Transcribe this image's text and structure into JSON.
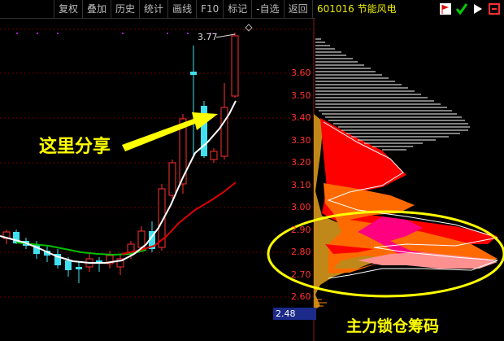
{
  "toolbar": {
    "items": [
      "复权",
      "叠加",
      "历史",
      "统计",
      "画线",
      "F10",
      "标记",
      "-自选",
      "返回"
    ]
  },
  "stock": {
    "title": "601016 节能风电",
    "header_icons": [
      "flag-icon",
      "check-icon",
      "arrow-icon",
      "expand-icon"
    ]
  },
  "axis": {
    "labels": [
      "3.60",
      "3.50",
      "3.40",
      "3.30",
      "3.20",
      "3.10",
      "3.00",
      "2.90",
      "2.80",
      "2.70",
      "2.60"
    ]
  },
  "price_tag": "2.48",
  "peak_label": "3.77",
  "annotations": {
    "share": "这里分享",
    "lock": "主力锁仓筹码"
  },
  "colors": {
    "up": "#ff3030",
    "down": "#40e0f0",
    "ma_fast": "#ffffff",
    "ma_slow": "#e00000",
    "ma_green": "#00c000",
    "annotation": "#ffff00",
    "chip_red": "#ff0000",
    "chip_orange": "#ff6a00",
    "chip_pink": "#ff0080",
    "chip_tan": "#c08818"
  }
}
